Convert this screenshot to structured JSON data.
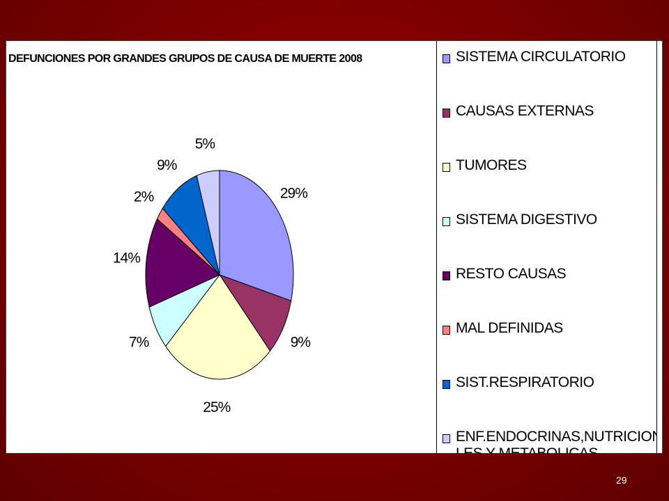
{
  "chart_data": {
    "type": "pie",
    "title": "DEFUNCIONES POR GRANDES GRUPOS DE CAUSA DE MUERTE 2008",
    "categories": [
      "SISTEMA CIRCULATORIO",
      "CAUSAS EXTERNAS",
      "TUMORES",
      "SISTEMA DIGESTIVO",
      "RESTO CAUSAS",
      "MAL DEFINIDAS",
      "SIST.RESPIRATORIO",
      "ENF.ENDOCRINAS,NUTRICIONA\nLES Y METABOLICAS"
    ],
    "values": [
      29,
      9,
      25,
      7,
      14,
      2,
      9,
      5
    ],
    "labels": [
      "29%",
      "9%",
      "25%",
      "7%",
      "14%",
      "2%",
      "9%",
      "5%"
    ],
    "colors": [
      "#9999ff",
      "#993366",
      "#ffffcc",
      "#ccffff",
      "#660066",
      "#ff8080",
      "#0066cc",
      "#ccccff"
    ],
    "legend_position": "right",
    "start_angle": "12 o'clock",
    "direction": "clockwise"
  },
  "page": {
    "number": "29"
  }
}
